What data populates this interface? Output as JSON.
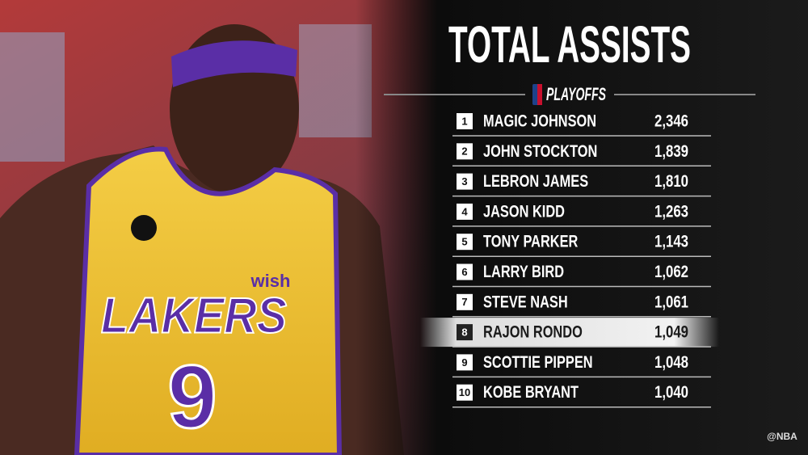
{
  "header": {
    "title": "TOTAL ASSISTS",
    "subtitle": "PLAYOFFS"
  },
  "table": {
    "rows": [
      [
        "1",
        "MAGIC JOHNSON",
        "2,346"
      ],
      [
        "2",
        "JOHN STOCKTON",
        "1,839"
      ],
      [
        "3",
        "LEBRON JAMES",
        "1,810"
      ],
      [
        "4",
        "JASON KIDD",
        "1,263"
      ],
      [
        "5",
        "TONY PARKER",
        "1,143"
      ],
      [
        "6",
        "LARRY BIRD",
        "1,062"
      ],
      [
        "7",
        "STEVE NASH",
        "1,061"
      ],
      [
        "8",
        "RAJON RONDO",
        "1,049"
      ],
      [
        "9",
        "SCOTTIE PIPPEN",
        "1,048"
      ],
      [
        "10",
        "KOBE BRYANT",
        "1,040"
      ]
    ],
    "highlight_row": 7
  },
  "photo": {
    "jersey_team": "LAKERS",
    "jersey_number": "9",
    "jersey_sponsor": "wish"
  },
  "footer": {
    "credit": "@NBA"
  }
}
